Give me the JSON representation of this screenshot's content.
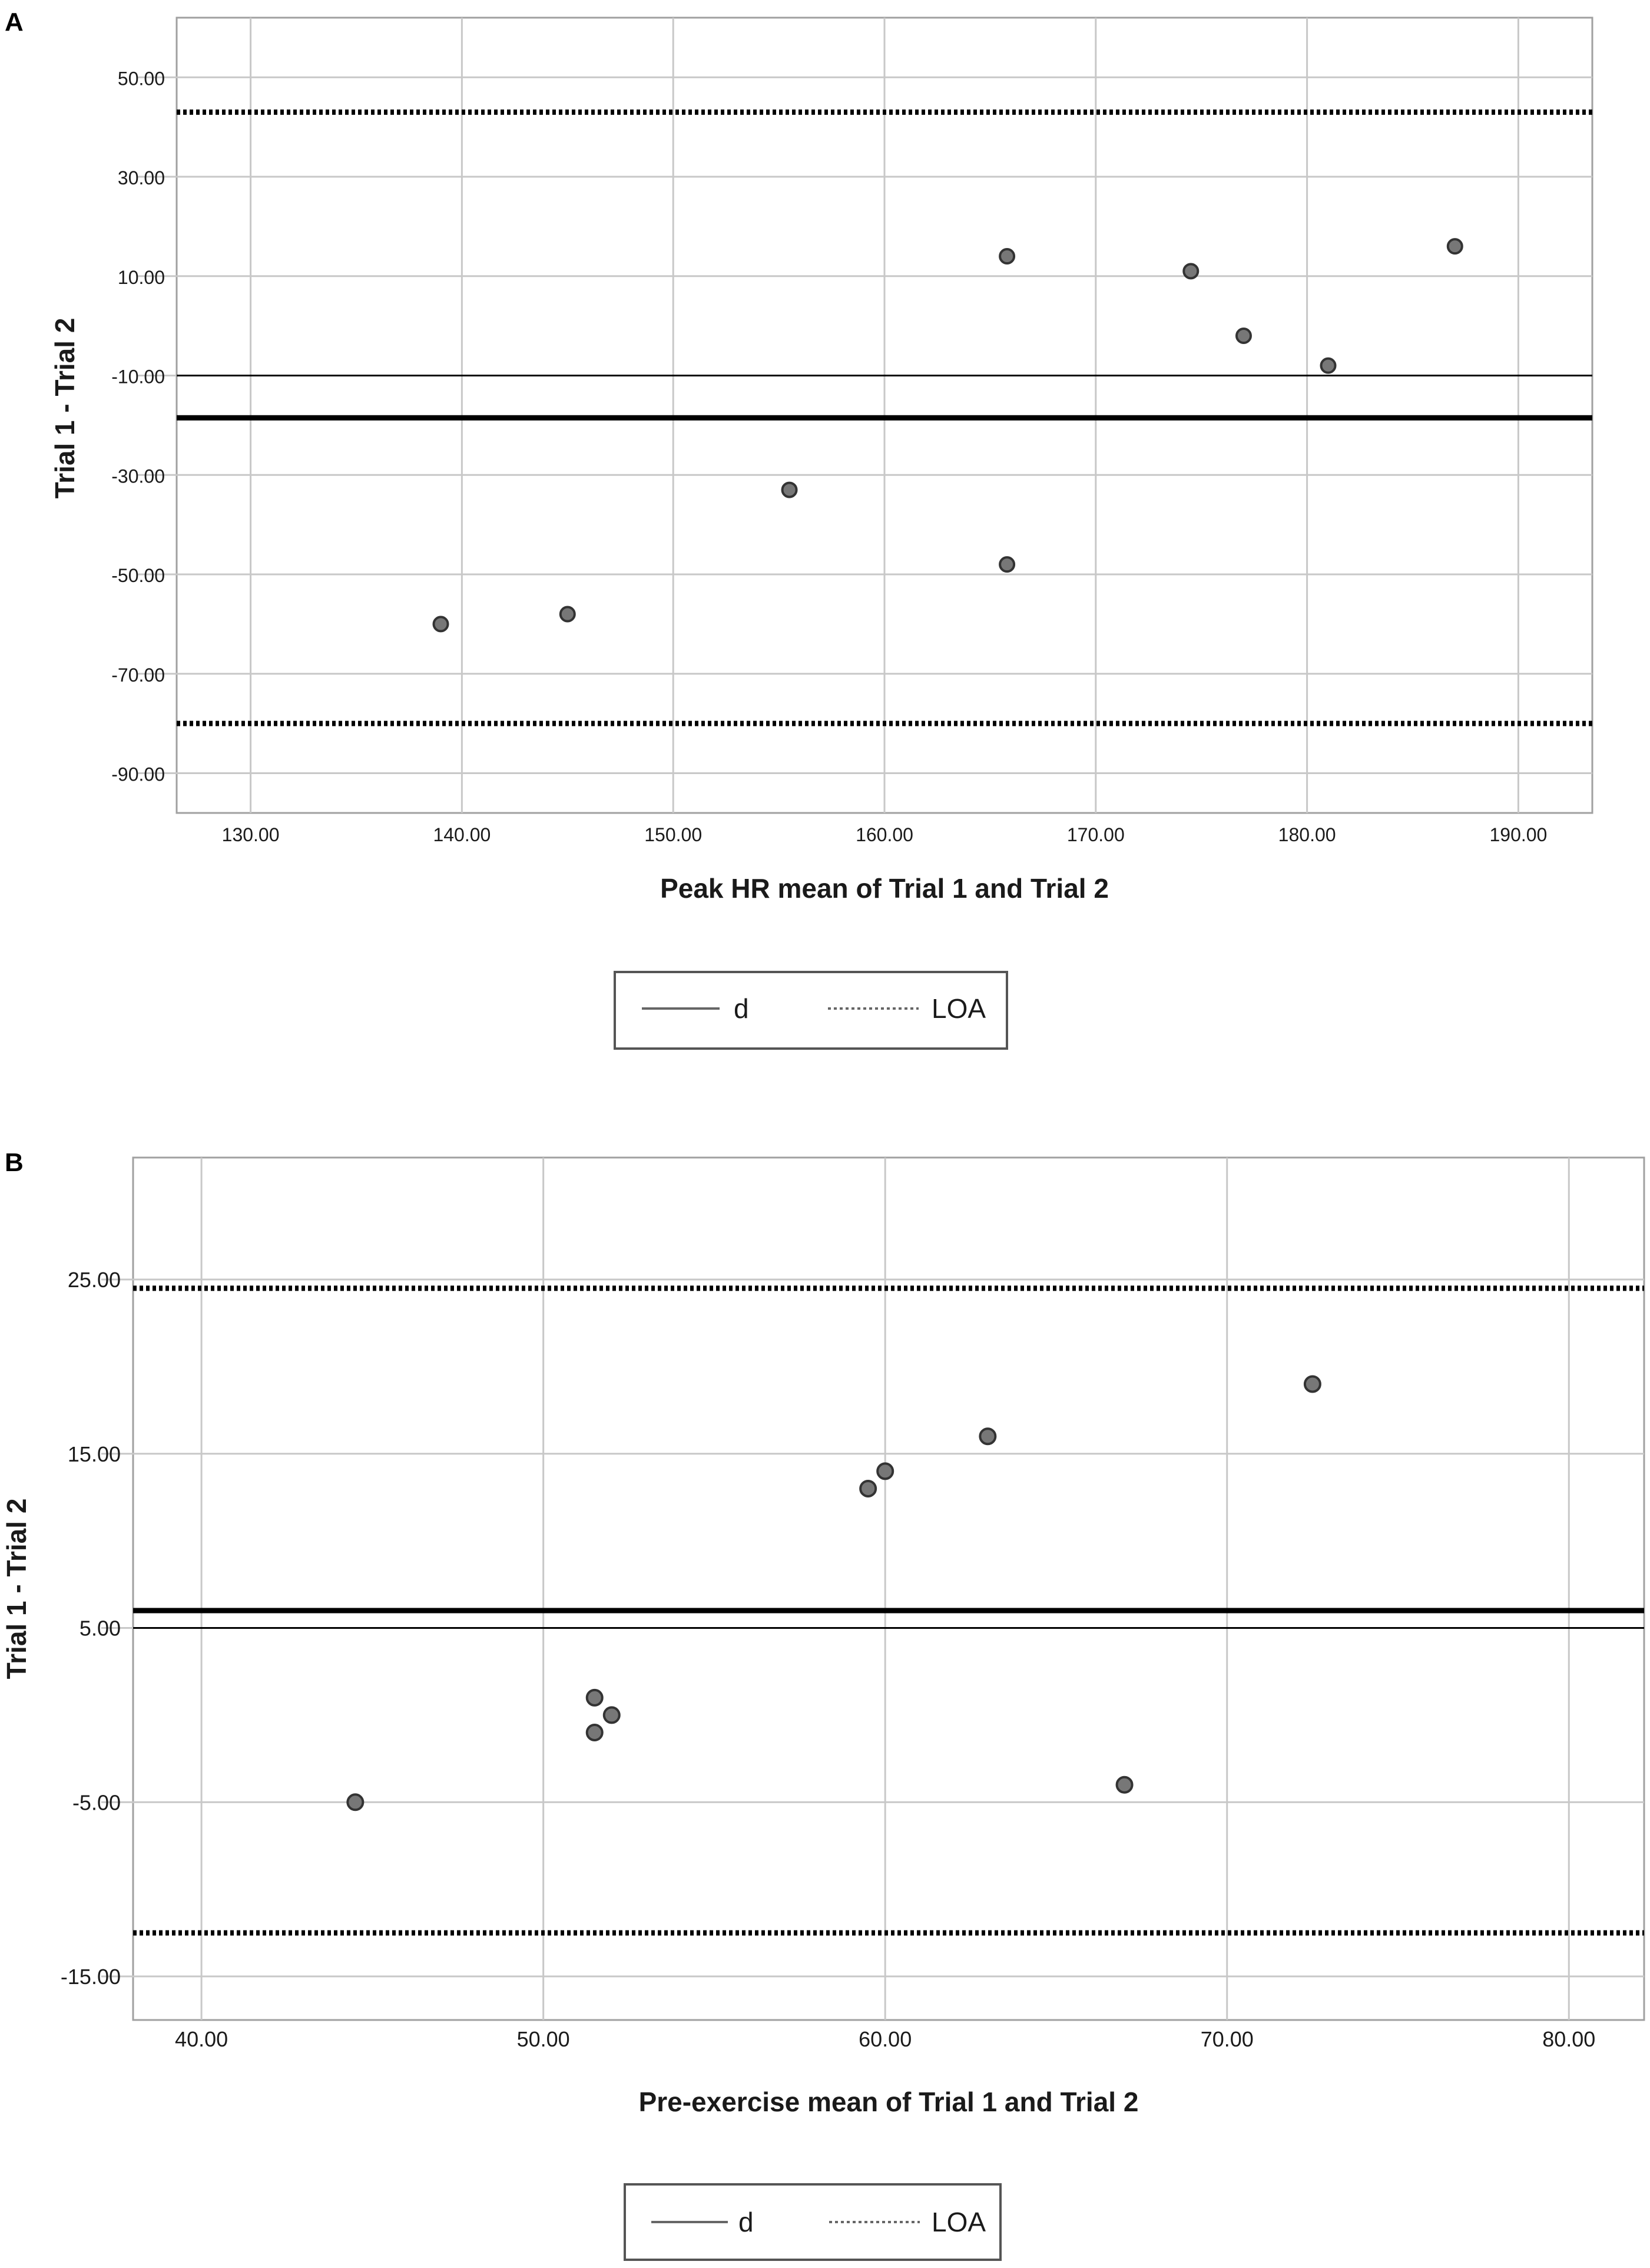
{
  "panels": [
    {
      "letter": "A"
    },
    {
      "letter": "B"
    }
  ],
  "chart_data": [
    {
      "type": "scatter",
      "title": "",
      "xlabel": "Peak HR mean of Trial 1 and Trial 2",
      "ylabel": "Trial 1 - Trial 2",
      "xlim": [
        126.5,
        193.5
      ],
      "ylim": [
        -98,
        62
      ],
      "x_ticks": [
        130,
        140,
        150,
        160,
        170,
        180,
        190
      ],
      "y_ticks": [
        50,
        30,
        10,
        -10,
        -30,
        -50,
        -70,
        -90
      ],
      "x_tick_labels": [
        "130.00",
        "140.00",
        "150.00",
        "160.00",
        "170.00",
        "180.00",
        "190.00"
      ],
      "y_tick_labels": [
        "50.00",
        "30.00",
        "10.00",
        "-10.00",
        "-30.00",
        "-50.00",
        "-70.00",
        "-90.00"
      ],
      "grid": true,
      "points": [
        {
          "x": 139,
          "y": -60
        },
        {
          "x": 145,
          "y": -58
        },
        {
          "x": 155.5,
          "y": -33
        },
        {
          "x": 165.8,
          "y": 14
        },
        {
          "x": 165.8,
          "y": -48
        },
        {
          "x": 174.5,
          "y": 11
        },
        {
          "x": 177,
          "y": -2
        },
        {
          "x": 181,
          "y": -8
        },
        {
          "x": 187,
          "y": 16
        }
      ],
      "reference_lines": [
        {
          "name": "zero",
          "y": -10,
          "style": "thin-solid"
        },
        {
          "name": "d",
          "y": -18.5,
          "style": "thick-solid"
        },
        {
          "name": "LOA",
          "y": 43,
          "style": "dotted"
        },
        {
          "name": "LOA",
          "y": -80,
          "style": "dotted"
        }
      ],
      "legend": {
        "placement": "bottom-center",
        "items": [
          {
            "label": "d",
            "style": "solid"
          },
          {
            "label": "LOA",
            "style": "dotted"
          }
        ]
      },
      "colors": {
        "point_fill": "#777777",
        "point_stroke": "#333333",
        "grid": "#c8c8c8",
        "line": "#000000"
      }
    },
    {
      "type": "scatter",
      "title": "",
      "xlabel": "Pre-exercise mean of Trial 1 and Trial 2",
      "ylabel": "Trial 1 - Trial 2",
      "xlim": [
        38,
        82.2
      ],
      "ylim": [
        -17.5,
        32
      ],
      "x_ticks": [
        40,
        50,
        60,
        70,
        80
      ],
      "y_ticks": [
        25,
        15,
        5,
        -5,
        -15
      ],
      "x_tick_labels": [
        "40.00",
        "50.00",
        "60.00",
        "70.00",
        "80.00"
      ],
      "y_tick_labels": [
        "25.00",
        "15.00",
        "5.00",
        "-5.00",
        "-15.00"
      ],
      "grid": true,
      "points": [
        {
          "x": 44.5,
          "y": -5
        },
        {
          "x": 51.5,
          "y": 1
        },
        {
          "x": 52,
          "y": 0
        },
        {
          "x": 51.5,
          "y": -1
        },
        {
          "x": 59.5,
          "y": 13
        },
        {
          "x": 60,
          "y": 14
        },
        {
          "x": 63,
          "y": 16
        },
        {
          "x": 67,
          "y": -4
        },
        {
          "x": 72.5,
          "y": 19
        }
      ],
      "reference_lines": [
        {
          "name": "zero",
          "y": 5,
          "style": "thin-solid"
        },
        {
          "name": "d",
          "y": 6,
          "style": "thick-solid"
        },
        {
          "name": "LOA",
          "y": 24.5,
          "style": "dotted"
        },
        {
          "name": "LOA",
          "y": -12.5,
          "style": "dotted"
        }
      ],
      "legend": {
        "placement": "bottom-center",
        "items": [
          {
            "label": "d",
            "style": "solid"
          },
          {
            "label": "LOA",
            "style": "dotted"
          }
        ]
      },
      "colors": {
        "point_fill": "#777777",
        "point_stroke": "#333333",
        "grid": "#c8c8c8",
        "line": "#000000"
      }
    }
  ]
}
